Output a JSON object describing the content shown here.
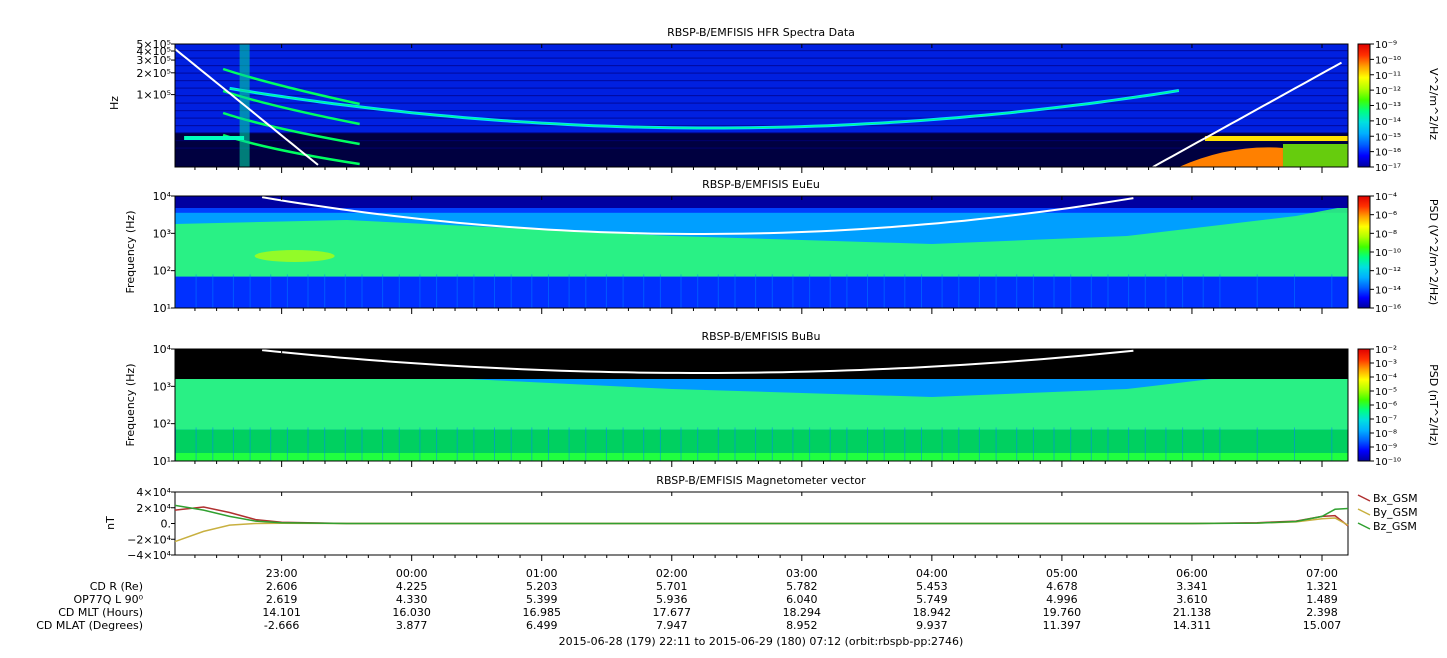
{
  "colors": {
    "spectrogram_scale": [
      "#000000",
      "#0000a0",
      "#0000ff",
      "#0060ff",
      "#00b0ff",
      "#00e0e0",
      "#00ff80",
      "#40ff00",
      "#b0ff00",
      "#ffff00",
      "#ffa000",
      "#ff3000",
      "#e00000"
    ],
    "cutoff_line": "#ffffff",
    "bx": "#b03030",
    "by": "#c8b040",
    "bz": "#30a030",
    "axis": "#000000"
  },
  "chart_data": [
    {
      "type": "heatmap",
      "title": "RBSP-B/EMFISIS  HFR Spectra Data",
      "ylabel": "Hz",
      "yscale": "log",
      "ylim": [
        10000,
        500000
      ],
      "ytick_labels": [
        "5×10⁵",
        "4×10⁵",
        "3×10⁵",
        "2×10⁵",
        "1×10⁵"
      ],
      "ytick_values": [
        500000,
        400000,
        300000,
        200000,
        100000
      ],
      "colorbar_label": "V^2/m^2/Hz",
      "colorbar_ticks": [
        "10⁻⁹",
        "10⁻¹⁰",
        "10⁻¹¹",
        "10⁻¹²",
        "10⁻¹³",
        "10⁻¹⁴",
        "10⁻¹⁵",
        "10⁻¹⁶",
        "10⁻¹⁷"
      ],
      "colorbar_range": [
        1e-17,
        1e-09
      ]
    },
    {
      "type": "heatmap",
      "title": "RBSP-B/EMFISIS  EuEu",
      "ylabel": "Frequency (Hz)",
      "yscale": "log",
      "ylim": [
        10,
        10000
      ],
      "ytick_labels": [
        "10⁴",
        "10³",
        "10²",
        "10¹"
      ],
      "ytick_values": [
        10000,
        1000,
        100,
        10
      ],
      "colorbar_label": "PSD (V^2/m^2/Hz)",
      "colorbar_ticks": [
        "10⁻⁴",
        "10⁻⁶",
        "10⁻⁸",
        "10⁻¹⁰",
        "10⁻¹²",
        "10⁻¹⁴",
        "10⁻¹⁶"
      ],
      "colorbar_range": [
        1e-16,
        0.0001
      ]
    },
    {
      "type": "heatmap",
      "title": "RBSP-B/EMFISIS  BuBu",
      "ylabel": "Frequency (Hz)",
      "yscale": "log",
      "ylim": [
        10,
        10000
      ],
      "ytick_labels": [
        "10⁴",
        "10³",
        "10²",
        "10¹"
      ],
      "ytick_values": [
        10000,
        1000,
        100,
        10
      ],
      "colorbar_label": "PSD (nT^2/Hz)",
      "colorbar_ticks": [
        "10⁻²",
        "10⁻³",
        "10⁻⁴",
        "10⁻⁵",
        "10⁻⁶",
        "10⁻⁷",
        "10⁻⁸",
        "10⁻⁹",
        "10⁻¹⁰"
      ],
      "colorbar_range": [
        1e-10,
        0.01
      ]
    },
    {
      "type": "line",
      "title": "RBSP-B/EMFISIS  Magnetometer vector",
      "ylabel": "nT",
      "ylim": [
        -40000,
        40000
      ],
      "ytick_labels": [
        "4×10⁴",
        "2×10⁴",
        "0.",
        "−2×10⁴",
        "−4×10⁴"
      ],
      "ytick_values": [
        40000,
        20000,
        0,
        -20000,
        -40000
      ],
      "x": [
        22.18,
        22.4,
        22.6,
        22.8,
        23.0,
        23.5,
        24.0,
        25.0,
        26.0,
        27.0,
        28.0,
        29.0,
        30.0,
        30.5,
        30.8,
        31.0,
        31.1,
        31.2
      ],
      "series": [
        {
          "name": "Bx_GSM",
          "values": [
            17000,
            21000,
            14000,
            5000,
            1500,
            0,
            0,
            0,
            0,
            0,
            0,
            0,
            0,
            1000,
            3000,
            9000,
            10000,
            -3000
          ]
        },
        {
          "name": "By_GSM",
          "values": [
            -23000,
            -10000,
            -2000,
            0,
            200,
            0,
            0,
            0,
            0,
            0,
            0,
            0,
            0,
            500,
            2000,
            6000,
            7000,
            -2000
          ]
        },
        {
          "name": "Bz_GSM",
          "values": [
            23000,
            17000,
            9000,
            3000,
            1000,
            0,
            0,
            0,
            0,
            0,
            0,
            0,
            0,
            500,
            2500,
            9000,
            18000,
            19000
          ]
        }
      ]
    }
  ],
  "time_axis": {
    "range_hours": [
      22.18,
      31.2
    ],
    "major_ticks": [
      23,
      24,
      25,
      26,
      27,
      28,
      29,
      30,
      31
    ],
    "labels": [
      "23:00",
      "00:00",
      "01:00",
      "02:00",
      "03:00",
      "04:00",
      "05:00",
      "06:00",
      "07:00"
    ]
  },
  "ephemeris": {
    "row_labels": [
      "CD R (Re)",
      "OP77Q L 90⁰",
      "CD MLT (Hours)",
      "CD MLAT (Degrees)"
    ],
    "rows": [
      [
        "2.606",
        "4.225",
        "5.203",
        "5.701",
        "5.782",
        "5.453",
        "4.678",
        "3.341",
        "1.321"
      ],
      [
        "2.619",
        "4.330",
        "5.399",
        "5.936",
        "6.040",
        "5.749",
        "4.996",
        "3.610",
        "1.489"
      ],
      [
        "14.101",
        "16.030",
        "16.985",
        "17.677",
        "18.294",
        "18.942",
        "19.760",
        "21.138",
        "2.398"
      ],
      [
        "-2.666",
        "3.877",
        "6.499",
        "7.947",
        "8.952",
        "9.937",
        "11.397",
        "14.311",
        "15.007"
      ]
    ]
  },
  "footer": "2015-06-28 (179) 22:11 to 2015-06-29 (180) 07:12 (orbit:rbspb-pp:2746)"
}
